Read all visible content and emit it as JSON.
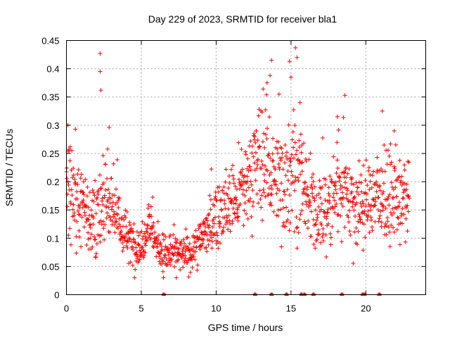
{
  "chart_data": {
    "type": "scatter",
    "title": "Day 229 of 2023, SRMTID for receiver bla1",
    "xlabel": "GPS time / hours",
    "ylabel": "SRMTID / TECUs",
    "xlim": [
      0,
      24
    ],
    "ylim": [
      0,
      0.45
    ],
    "x_ticks": [
      0,
      5,
      10,
      15,
      20
    ],
    "x_tick_labels": [
      "0",
      "5",
      "10",
      "15",
      "20"
    ],
    "y_ticks": [
      0,
      0.05,
      0.1,
      0.15,
      0.2,
      0.25,
      0.3,
      0.35,
      0.4,
      0.45
    ],
    "y_tick_labels": [
      "0",
      "0.05",
      "0.1",
      "0.15",
      "0.2",
      "0.25",
      "0.3",
      "0.35",
      "0.4",
      "0.45"
    ],
    "grid": true,
    "marker": "+",
    "color": "#ff0000",
    "series": [
      {
        "name": "SRMTID",
        "envelope": {
          "x": [
            0.0,
            0.5,
            1.0,
            1.5,
            2.0,
            2.5,
            3.0,
            3.5,
            4.0,
            4.5,
            5.0,
            5.5,
            6.0,
            6.5,
            7.0,
            7.5,
            8.0,
            8.5,
            9.0,
            9.5,
            10.0,
            10.5,
            11.0,
            11.5,
            12.0,
            12.5,
            13.0,
            13.5,
            14.0,
            14.5,
            15.0,
            15.5,
            16.0,
            16.5,
            17.0,
            17.5,
            18.0,
            18.5,
            19.0,
            19.5,
            20.0,
            20.5,
            21.0,
            21.5,
            22.0,
            22.5,
            22.9
          ],
          "y": [
            0.2,
            0.17,
            0.16,
            0.14,
            0.12,
            0.16,
            0.17,
            0.13,
            0.1,
            0.09,
            0.08,
            0.14,
            0.09,
            0.07,
            0.075,
            0.07,
            0.07,
            0.08,
            0.1,
            0.12,
            0.14,
            0.15,
            0.16,
            0.17,
            0.19,
            0.22,
            0.24,
            0.23,
            0.2,
            0.19,
            0.24,
            0.2,
            0.17,
            0.15,
            0.14,
            0.15,
            0.19,
            0.2,
            0.17,
            0.15,
            0.16,
            0.18,
            0.17,
            0.16,
            0.17,
            0.16,
            0.17
          ]
        },
        "spread": {
          "x": [
            0.0,
            2.0,
            4.0,
            6.0,
            8.0,
            10.0,
            12.0,
            13.0,
            14.0,
            15.0,
            16.0,
            17.0,
            18.0,
            19.0,
            20.0,
            22.0,
            22.9
          ],
          "y": [
            0.05,
            0.05,
            0.03,
            0.025,
            0.02,
            0.035,
            0.05,
            0.07,
            0.07,
            0.07,
            0.05,
            0.05,
            0.06,
            0.06,
            0.05,
            0.05,
            0.04
          ]
        },
        "peaks": [
          {
            "x": 2.25,
            "y": 0.427
          },
          {
            "x": 2.25,
            "y": 0.395
          },
          {
            "x": 2.3,
            "y": 0.362
          },
          {
            "x": 2.85,
            "y": 0.296
          },
          {
            "x": 0.1,
            "y": 0.3
          },
          {
            "x": 0.6,
            "y": 0.293
          },
          {
            "x": 13.4,
            "y": 0.375
          },
          {
            "x": 13.7,
            "y": 0.415
          },
          {
            "x": 13.6,
            "y": 0.388
          },
          {
            "x": 14.2,
            "y": 0.355
          },
          {
            "x": 14.9,
            "y": 0.413
          },
          {
            "x": 15.0,
            "y": 0.385
          },
          {
            "x": 15.3,
            "y": 0.437
          },
          {
            "x": 15.4,
            "y": 0.42
          },
          {
            "x": 15.6,
            "y": 0.34
          },
          {
            "x": 18.6,
            "y": 0.353
          },
          {
            "x": 18.1,
            "y": 0.315
          },
          {
            "x": 21.1,
            "y": 0.325
          },
          {
            "x": 21.9,
            "y": 0.29
          }
        ],
        "zeros_x": [
          6.5,
          12.6,
          13.7,
          14.7,
          15.7,
          15.9,
          16.5,
          18.4,
          19.8,
          19.9,
          20.9
        ]
      }
    ]
  }
}
